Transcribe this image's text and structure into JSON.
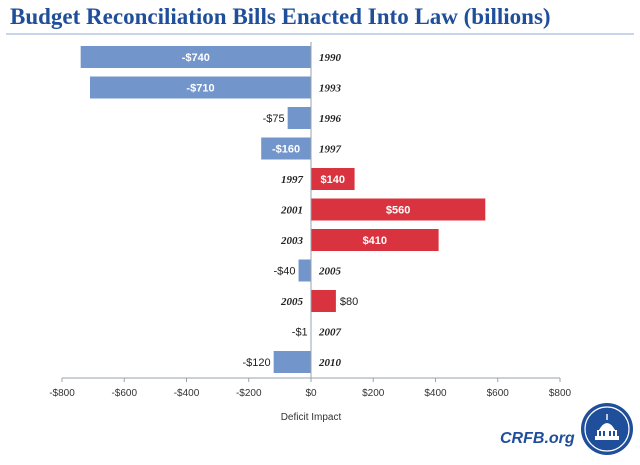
{
  "page": {
    "brand": "CRFB.org",
    "logo": "crfb-capitol-seal"
  },
  "chart_data": {
    "type": "bar",
    "orientation": "horizontal",
    "title": "Budget Reconciliation  Bills Enacted Into Law (billions)",
    "xlabel": "Deficit Impact",
    "ylabel": "",
    "xlim": [
      -800,
      800
    ],
    "xticks": [
      -800,
      -600,
      -400,
      -200,
      0,
      200,
      400,
      600,
      800
    ],
    "xtick_labels": [
      "-$800",
      "-$600",
      "-$400",
      "-$200",
      "$0",
      "$200",
      "$400",
      "$600",
      "$800"
    ],
    "categories": [
      "1990",
      "1993",
      "1996",
      "1997",
      "1997",
      "2001",
      "2003",
      "2005",
      "2005",
      "2007",
      "2010"
    ],
    "values": [
      -740,
      -710,
      -75,
      -160,
      140,
      560,
      410,
      -40,
      80,
      -1,
      -120
    ],
    "value_labels": [
      "-$740",
      "-$710",
      "-$75",
      "-$160",
      "$140",
      "$560",
      "$410",
      "-$40",
      "$80",
      "-$1",
      "-$120"
    ],
    "colors": {
      "negative": "#7295CC",
      "positive": "#D9333F"
    },
    "grid": false
  }
}
